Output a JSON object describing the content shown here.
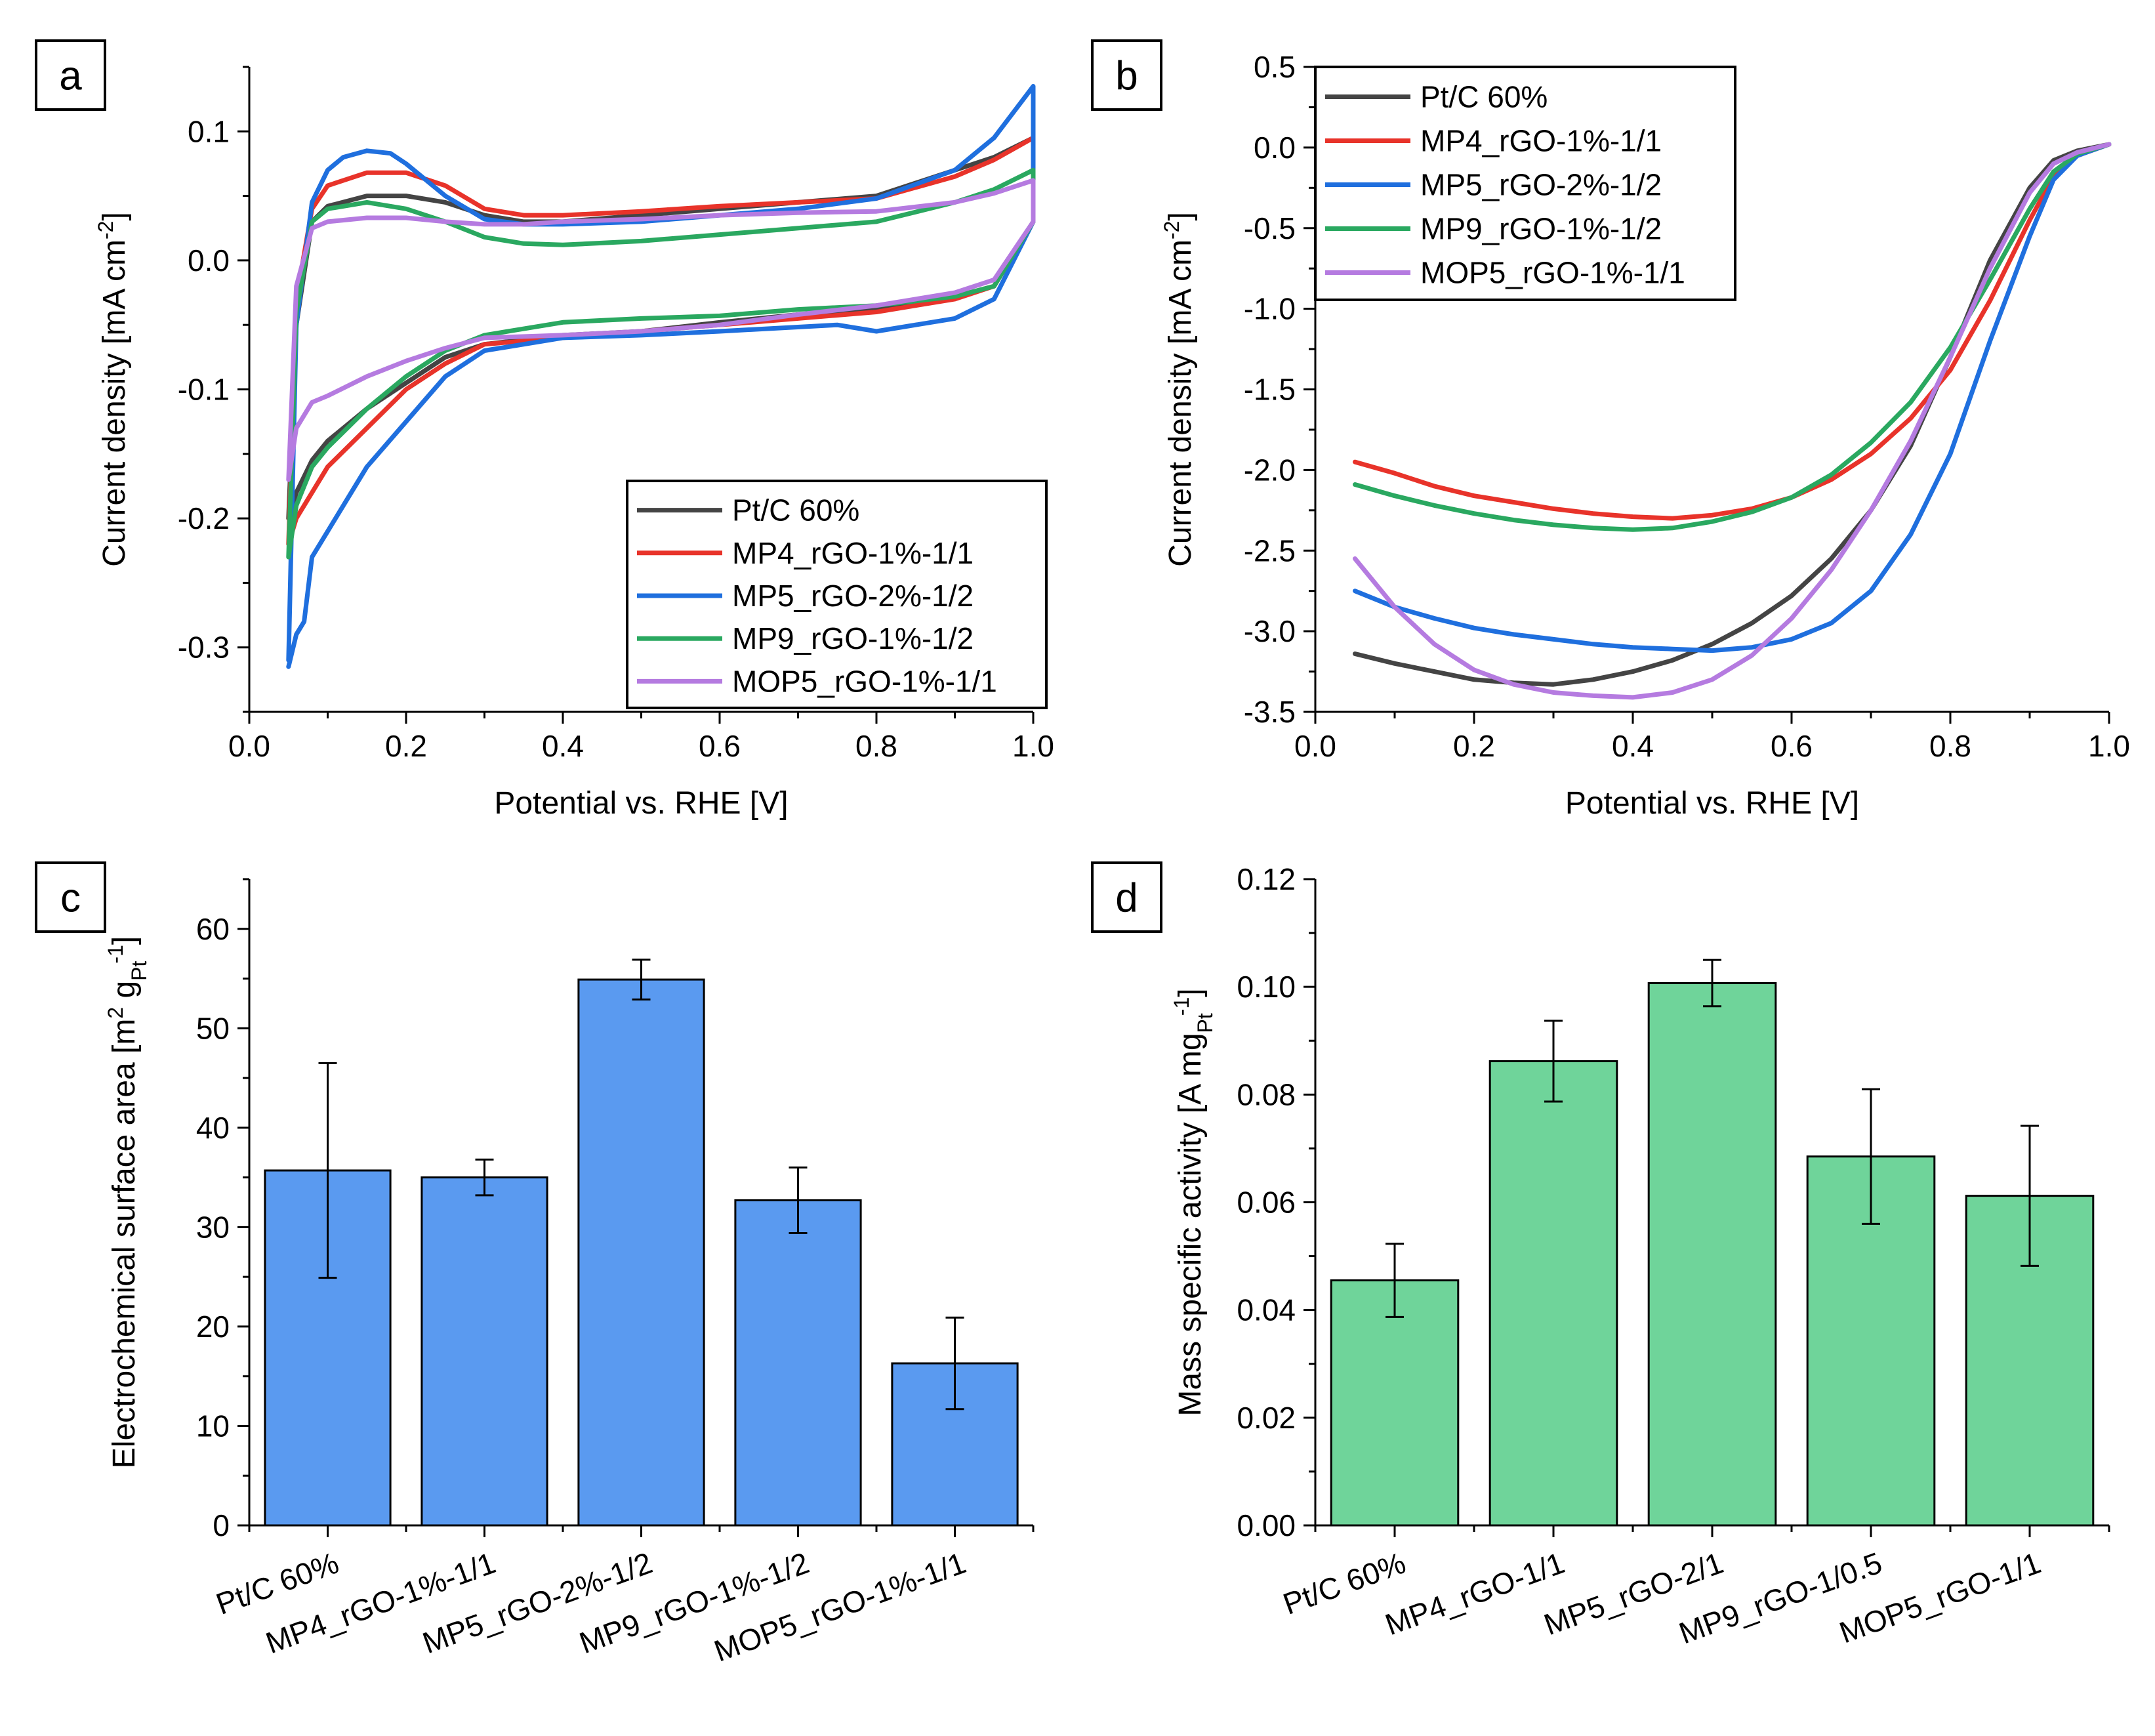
{
  "chart_data": [
    {
      "panel": "a",
      "type": "line",
      "xlabel": "Potential vs. RHE [V]",
      "ylabel": "Current density [mA cm",
      "ylabel_sup": "-2",
      "ylabel_tail": "]",
      "xlim": [
        0.0,
        1.0
      ],
      "ylim": [
        -0.35,
        0.15
      ],
      "xticks": [
        "0.0",
        "0.2",
        "0.4",
        "0.6",
        "0.8",
        "1.0"
      ],
      "yticks": [
        "-0.3",
        "-0.2",
        "-0.1",
        "0.0",
        "0.1"
      ],
      "legend": "bottom-right",
      "series": [
        {
          "name": "Pt/C 60%",
          "color": "#444444",
          "x": [
            0.05,
            0.06,
            0.08,
            0.1,
            0.15,
            0.2,
            0.25,
            0.3,
            0.35,
            0.4,
            0.5,
            0.6,
            0.7,
            0.8,
            0.9,
            0.95,
            1.0,
            1.0,
            0.95,
            0.9,
            0.8,
            0.7,
            0.6,
            0.5,
            0.4,
            0.3,
            0.25,
            0.2,
            0.15,
            0.1,
            0.08,
            0.06,
            0.05
          ],
          "y": [
            -0.2,
            -0.05,
            0.03,
            0.042,
            0.05,
            0.05,
            0.045,
            0.035,
            0.03,
            0.03,
            0.035,
            0.04,
            0.045,
            0.05,
            0.07,
            0.08,
            0.095,
            0.03,
            -0.02,
            -0.028,
            -0.038,
            -0.042,
            -0.048,
            -0.055,
            -0.058,
            -0.065,
            -0.075,
            -0.095,
            -0.115,
            -0.14,
            -0.155,
            -0.18,
            -0.2
          ]
        },
        {
          "name": "MP4_rGO-1%-1/1",
          "color": "#e8332a",
          "x": [
            0.05,
            0.06,
            0.08,
            0.1,
            0.15,
            0.2,
            0.25,
            0.3,
            0.35,
            0.4,
            0.5,
            0.6,
            0.7,
            0.8,
            0.9,
            0.95,
            1.0,
            1.0,
            0.95,
            0.9,
            0.8,
            0.7,
            0.6,
            0.5,
            0.4,
            0.3,
            0.25,
            0.2,
            0.15,
            0.1,
            0.08,
            0.06,
            0.05
          ],
          "y": [
            -0.22,
            -0.03,
            0.04,
            0.058,
            0.068,
            0.068,
            0.058,
            0.04,
            0.035,
            0.035,
            0.038,
            0.042,
            0.045,
            0.048,
            0.065,
            0.078,
            0.095,
            0.03,
            -0.02,
            -0.03,
            -0.04,
            -0.045,
            -0.05,
            -0.055,
            -0.06,
            -0.065,
            -0.08,
            -0.1,
            -0.13,
            -0.16,
            -0.18,
            -0.2,
            -0.22
          ]
        },
        {
          "name": "MP5_rGO-2%-1/2",
          "color": "#1f6fde",
          "x": [
            0.05,
            0.06,
            0.08,
            0.1,
            0.12,
            0.15,
            0.18,
            0.2,
            0.25,
            0.3,
            0.35,
            0.4,
            0.5,
            0.6,
            0.7,
            0.8,
            0.9,
            0.95,
            1.0,
            1.0,
            0.95,
            0.9,
            0.8,
            0.75,
            0.6,
            0.5,
            0.4,
            0.3,
            0.25,
            0.2,
            0.15,
            0.1,
            0.08,
            0.07,
            0.06,
            0.05
          ],
          "y": [
            -0.31,
            -0.05,
            0.045,
            0.07,
            0.08,
            0.085,
            0.083,
            0.075,
            0.05,
            0.032,
            0.028,
            0.028,
            0.03,
            0.035,
            0.04,
            0.048,
            0.07,
            0.095,
            0.135,
            0.03,
            -0.03,
            -0.045,
            -0.055,
            -0.05,
            -0.055,
            -0.058,
            -0.06,
            -0.07,
            -0.09,
            -0.125,
            -0.16,
            -0.21,
            -0.23,
            -0.28,
            -0.29,
            -0.315
          ]
        },
        {
          "name": "MP9_rGO-1%-1/2",
          "color": "#2aa860",
          "x": [
            0.05,
            0.06,
            0.08,
            0.1,
            0.15,
            0.2,
            0.25,
            0.3,
            0.35,
            0.4,
            0.5,
            0.6,
            0.7,
            0.8,
            0.9,
            0.95,
            1.0,
            1.0,
            0.95,
            0.9,
            0.8,
            0.7,
            0.6,
            0.5,
            0.4,
            0.3,
            0.25,
            0.2,
            0.15,
            0.1,
            0.08,
            0.06,
            0.05
          ],
          "y": [
            -0.23,
            -0.04,
            0.03,
            0.04,
            0.045,
            0.04,
            0.03,
            0.018,
            0.013,
            0.012,
            0.015,
            0.02,
            0.025,
            0.03,
            0.045,
            0.055,
            0.07,
            0.03,
            -0.02,
            -0.028,
            -0.035,
            -0.038,
            -0.043,
            -0.045,
            -0.048,
            -0.058,
            -0.07,
            -0.09,
            -0.115,
            -0.145,
            -0.16,
            -0.19,
            -0.23
          ]
        },
        {
          "name": "MOP5_rGO-1%-1/1",
          "color": "#b57be0",
          "x": [
            0.05,
            0.06,
            0.08,
            0.1,
            0.15,
            0.2,
            0.25,
            0.3,
            0.35,
            0.4,
            0.5,
            0.6,
            0.7,
            0.8,
            0.9,
            0.95,
            1.0,
            1.0,
            0.95,
            0.9,
            0.8,
            0.7,
            0.6,
            0.5,
            0.4,
            0.3,
            0.25,
            0.2,
            0.15,
            0.1,
            0.08,
            0.06,
            0.05
          ],
          "y": [
            -0.17,
            -0.02,
            0.025,
            0.03,
            0.033,
            0.033,
            0.03,
            0.028,
            0.028,
            0.03,
            0.032,
            0.035,
            0.037,
            0.038,
            0.045,
            0.052,
            0.062,
            0.03,
            -0.015,
            -0.025,
            -0.035,
            -0.042,
            -0.05,
            -0.055,
            -0.058,
            -0.06,
            -0.068,
            -0.078,
            -0.09,
            -0.105,
            -0.11,
            -0.13,
            -0.17
          ]
        }
      ]
    },
    {
      "panel": "b",
      "type": "line",
      "xlabel": "Potential vs. RHE [V]",
      "ylabel": "Current density [mA cm",
      "ylabel_sup": "-2",
      "ylabel_tail": "]",
      "xlim": [
        0.0,
        1.0
      ],
      "ylim": [
        -3.5,
        0.5
      ],
      "xticks": [
        "0.0",
        "0.2",
        "0.4",
        "0.6",
        "0.8",
        "1.0"
      ],
      "yticks": [
        "-3.5",
        "-3.0",
        "-2.5",
        "-2.0",
        "-1.5",
        "-1.0",
        "-0.5",
        "0.0",
        "0.5"
      ],
      "legend": "top-left",
      "series": [
        {
          "name": "Pt/C 60%",
          "color": "#444444",
          "x": [
            0.05,
            0.1,
            0.15,
            0.2,
            0.25,
            0.3,
            0.35,
            0.4,
            0.45,
            0.5,
            0.55,
            0.6,
            0.65,
            0.7,
            0.75,
            0.8,
            0.85,
            0.9,
            0.93,
            0.96,
            1.0
          ],
          "y": [
            -3.14,
            -3.2,
            -3.25,
            -3.3,
            -3.32,
            -3.33,
            -3.3,
            -3.25,
            -3.18,
            -3.08,
            -2.95,
            -2.78,
            -2.55,
            -2.25,
            -1.85,
            -1.3,
            -0.7,
            -0.25,
            -0.08,
            -0.02,
            0.02
          ]
        },
        {
          "name": "MP4_rGO-1%-1/1",
          "color": "#e8332a",
          "x": [
            0.05,
            0.1,
            0.15,
            0.2,
            0.25,
            0.3,
            0.35,
            0.4,
            0.45,
            0.5,
            0.55,
            0.6,
            0.65,
            0.7,
            0.75,
            0.8,
            0.85,
            0.9,
            0.93,
            0.96,
            1.0
          ],
          "y": [
            -1.95,
            -2.02,
            -2.1,
            -2.16,
            -2.2,
            -2.24,
            -2.27,
            -2.29,
            -2.3,
            -2.28,
            -2.24,
            -2.17,
            -2.06,
            -1.9,
            -1.68,
            -1.38,
            -0.95,
            -0.45,
            -0.18,
            -0.05,
            0.02
          ]
        },
        {
          "name": "MP5_rGO-2%-1/2",
          "color": "#1f6fde",
          "x": [
            0.05,
            0.1,
            0.15,
            0.2,
            0.25,
            0.3,
            0.35,
            0.4,
            0.45,
            0.5,
            0.55,
            0.6,
            0.65,
            0.7,
            0.75,
            0.8,
            0.85,
            0.9,
            0.93,
            0.96,
            1.0
          ],
          "y": [
            -2.75,
            -2.85,
            -2.92,
            -2.98,
            -3.02,
            -3.05,
            -3.08,
            -3.1,
            -3.11,
            -3.12,
            -3.1,
            -3.05,
            -2.95,
            -2.75,
            -2.4,
            -1.9,
            -1.2,
            -0.55,
            -0.2,
            -0.05,
            0.02
          ]
        },
        {
          "name": "MP9_rGO-1%-1/2",
          "color": "#2aa860",
          "x": [
            0.05,
            0.1,
            0.15,
            0.2,
            0.25,
            0.3,
            0.35,
            0.4,
            0.45,
            0.5,
            0.55,
            0.6,
            0.65,
            0.7,
            0.75,
            0.8,
            0.85,
            0.9,
            0.93,
            0.96,
            1.0
          ],
          "y": [
            -2.09,
            -2.16,
            -2.22,
            -2.27,
            -2.31,
            -2.34,
            -2.36,
            -2.37,
            -2.36,
            -2.32,
            -2.26,
            -2.17,
            -2.03,
            -1.83,
            -1.58,
            -1.24,
            -0.82,
            -0.38,
            -0.15,
            -0.04,
            0.02
          ]
        },
        {
          "name": "MOP5_rGO-1%-1/1",
          "color": "#b57be0",
          "x": [
            0.05,
            0.1,
            0.15,
            0.2,
            0.25,
            0.3,
            0.35,
            0.4,
            0.45,
            0.5,
            0.55,
            0.6,
            0.65,
            0.7,
            0.75,
            0.8,
            0.85,
            0.9,
            0.93,
            0.96,
            1.0
          ],
          "y": [
            -2.55,
            -2.85,
            -3.08,
            -3.24,
            -3.33,
            -3.38,
            -3.4,
            -3.41,
            -3.38,
            -3.3,
            -3.15,
            -2.92,
            -2.62,
            -2.25,
            -1.82,
            -1.3,
            -0.75,
            -0.28,
            -0.1,
            -0.03,
            0.02
          ]
        }
      ]
    },
    {
      "panel": "c",
      "type": "bar",
      "ylabel": "Electrochemical surface area [m",
      "ylabel_sup": "2",
      "ylabel_mid": " g",
      "ylabel_sub": "Pt",
      "ylabel_sup2": "-1",
      "ylabel_tail": "]",
      "ylim": [
        0,
        65
      ],
      "yticks": [
        "0",
        "10",
        "20",
        "30",
        "40",
        "50",
        "60"
      ],
      "bar_color": "#5a9af0",
      "categories": [
        "Pt/C 60%",
        "MP4_rGO-1%-1/1",
        "MP5_rGO-2%-1/2",
        "MP9_rGO-1%-1/2",
        "MOP5_rGO-1%-1/1"
      ],
      "values": [
        35.7,
        35.0,
        54.9,
        32.7,
        16.3
      ],
      "errors": [
        10.8,
        1.8,
        2.0,
        3.3,
        4.6
      ]
    },
    {
      "panel": "d",
      "type": "bar",
      "ylabel": "Mass specific activity [A mg",
      "ylabel_sub": "Pt",
      "ylabel_sup2": "-1",
      "ylabel_tail": "]",
      "ylim": [
        0,
        0.12
      ],
      "yticks": [
        "0.00",
        "0.02",
        "0.04",
        "0.06",
        "0.08",
        "0.10",
        "0.12"
      ],
      "bar_color": "#6fd49a",
      "categories": [
        "Pt/C 60%",
        "MP4_rGO-1/1",
        "MP5_rGO-2/1",
        "MP9_rGO-1/0.5",
        "MOP5_rGO-1/1"
      ],
      "values": [
        0.0455,
        0.0862,
        0.1007,
        0.0685,
        0.0612
      ],
      "errors": [
        0.0068,
        0.0075,
        0.0043,
        0.0125,
        0.013
      ]
    }
  ]
}
